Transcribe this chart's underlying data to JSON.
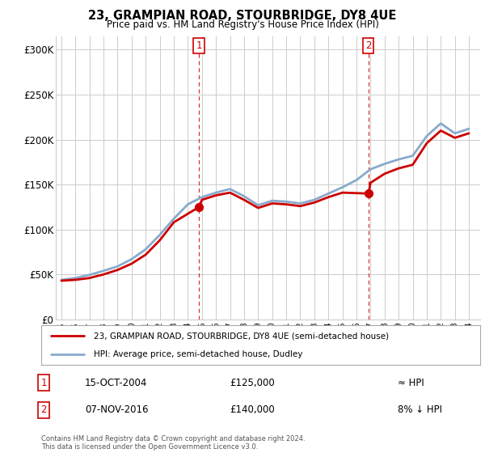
{
  "title": "23, GRAMPIAN ROAD, STOURBRIDGE, DY8 4UE",
  "subtitle": "Price paid vs. HM Land Registry's House Price Index (HPI)",
  "ylabel_ticks": [
    "£0",
    "£50K",
    "£100K",
    "£150K",
    "£200K",
    "£250K",
    "£300K"
  ],
  "ytick_values": [
    0,
    50000,
    100000,
    150000,
    200000,
    250000,
    300000
  ],
  "ylim": [
    0,
    315000
  ],
  "xlim_start": 1994.6,
  "xlim_end": 2024.8,
  "legend_line1": "23, GRAMPIAN ROAD, STOURBRIDGE, DY8 4UE (semi-detached house)",
  "legend_line2": "HPI: Average price, semi-detached house, Dudley",
  "annotation1_num": "1",
  "annotation1_date": "15-OCT-2004",
  "annotation1_price": "£125,000",
  "annotation1_hpi": "≈ HPI",
  "annotation2_num": "2",
  "annotation2_date": "07-NOV-2016",
  "annotation2_price": "£140,000",
  "annotation2_hpi": "8% ↓ HPI",
  "footer": "Contains HM Land Registry data © Crown copyright and database right 2024.\nThis data is licensed under the Open Government Licence v3.0.",
  "sale1_x": 2004.79,
  "sale1_y": 125000,
  "sale2_x": 2016.85,
  "sale2_y": 140000,
  "price_color": "#cc0000",
  "hpi_color": "#88aacc",
  "vline_color": "#cc0000",
  "grid_color": "#cccccc",
  "background_color": "#ffffff",
  "hpi_years": [
    1995,
    1996,
    1997,
    1998,
    1999,
    2000,
    2001,
    2002,
    2003,
    2004,
    2005,
    2006,
    2007,
    2008,
    2009,
    2010,
    2011,
    2012,
    2013,
    2014,
    2015,
    2016,
    2017,
    2018,
    2019,
    2020,
    2021,
    2022,
    2023,
    2024
  ],
  "hpi_values": [
    44000,
    46000,
    49500,
    54000,
    59000,
    67000,
    78000,
    94000,
    112000,
    128000,
    136000,
    141000,
    145000,
    137000,
    127000,
    132000,
    131000,
    129000,
    133000,
    140000,
    147000,
    155000,
    167000,
    173000,
    178000,
    182000,
    204000,
    218000,
    207000,
    212000
  ],
  "price_years": [
    1995,
    1996,
    1997,
    1998,
    1999,
    2000,
    2001,
    2002,
    2003,
    2004.79,
    2005,
    2006,
    2007,
    2008,
    2009,
    2010,
    2011,
    2012,
    2013,
    2014,
    2015,
    2016.85,
    2017,
    2018,
    2019,
    2020,
    2021,
    2022,
    2023,
    2024
  ],
  "price_values": [
    43000,
    44000,
    46000,
    50000,
    55000,
    62000,
    72000,
    88000,
    108000,
    125000,
    133000,
    138000,
    141000,
    133000,
    124000,
    129000,
    128000,
    126000,
    130000,
    136000,
    141000,
    140000,
    152000,
    162000,
    168000,
    172000,
    196000,
    210000,
    202000,
    207000
  ]
}
